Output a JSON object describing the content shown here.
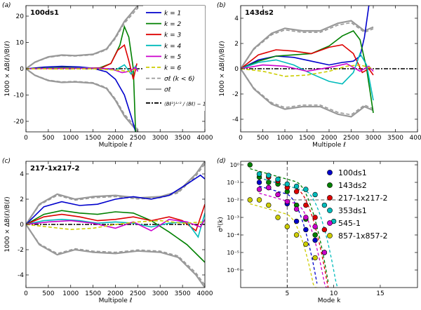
{
  "chart_data": [
    {
      "panel": "(a)",
      "type": "line",
      "title": "100ds1",
      "xlabel": "Multipole ℓ",
      "ylabel": "1000 × ΔB(ℓ)/B(ℓ)",
      "xlim": [
        0,
        4000
      ],
      "ylim": [
        -24,
        24
      ],
      "xticks": [
        "0",
        "500",
        "1000",
        "1500",
        "2000",
        "2500",
        "3000",
        "3500",
        "4000"
      ],
      "yticks": [
        "20",
        "10",
        "0",
        "-10",
        "-20"
      ],
      "ytick_values": [
        20,
        10,
        0,
        -10,
        -20
      ],
      "series": [
        {
          "name": "k=1",
          "color": "#0000cc",
          "x": [
            0,
            400,
            800,
            1200,
            1500,
            1800,
            2000,
            2200,
            2350,
            2450
          ],
          "y": [
            0,
            0.6,
            0.9,
            0.7,
            0.2,
            -1.2,
            -4,
            -10,
            -18,
            -24
          ]
        },
        {
          "name": "k=2",
          "color": "#008000",
          "x": [
            0,
            500,
            900,
            1300,
            1600,
            1900,
            2100,
            2200,
            2300,
            2400,
            2450
          ],
          "y": [
            0,
            0.3,
            0.5,
            0.2,
            0,
            2,
            9,
            16,
            12,
            0,
            -24
          ]
        },
        {
          "name": "k=3",
          "color": "#dd0000",
          "x": [
            0,
            500,
            900,
            1300,
            1700,
            1900,
            2050,
            2200,
            2300,
            2400,
            2480
          ],
          "y": [
            0,
            0.2,
            0.3,
            0.2,
            0.4,
            2,
            7,
            9,
            3,
            -4,
            2
          ]
        },
        {
          "name": "k=4",
          "color": "#00bbbb",
          "x": [
            0,
            600,
            1200,
            1700,
            2000,
            2200,
            2350,
            2450,
            2500
          ],
          "y": [
            0,
            0.2,
            0.3,
            0.2,
            -0.5,
            1.5,
            -2,
            1,
            -1
          ]
        },
        {
          "name": "k=5",
          "color": "#cc00cc",
          "x": [
            0,
            800,
            1500,
            1900,
            2150,
            2300,
            2450,
            2500
          ],
          "y": [
            0,
            0.1,
            0.2,
            0,
            -1.5,
            -1,
            0.5,
            -1
          ]
        },
        {
          "name": "k=6",
          "color": "#cccc00",
          "dashed": true,
          "x": [
            0,
            800,
            1500,
            2000,
            2300,
            2450
          ],
          "y": [
            0,
            -0.1,
            0,
            -0.5,
            -1,
            -0.2
          ]
        }
      ],
      "sigma_upper": {
        "x": [
          0,
          200,
          500,
          800,
          1100,
          1500,
          1800,
          2000,
          2200,
          2400,
          2500
        ],
        "y": [
          0,
          2.5,
          4.5,
          5.2,
          5,
          5.5,
          7.5,
          12,
          18,
          22,
          24
        ]
      },
      "sigma_lower": {
        "x": [
          0,
          200,
          500,
          800,
          1100,
          1500,
          1800,
          2000,
          2200,
          2400,
          2500
        ],
        "y": [
          0,
          -2.5,
          -4.5,
          -5.2,
          -5,
          -5.5,
          -7.5,
          -12,
          -18,
          -22,
          -24
        ]
      },
      "legend": [
        {
          "label": "k = 1",
          "color": "#0000cc",
          "style": "solid"
        },
        {
          "label": "k = 2",
          "color": "#008000",
          "style": "solid"
        },
        {
          "label": "k = 3",
          "color": "#dd0000",
          "style": "solid"
        },
        {
          "label": "k = 4",
          "color": "#00bbbb",
          "style": "solid"
        },
        {
          "label": "k = 5",
          "color": "#cc00cc",
          "style": "solid"
        },
        {
          "label": "k = 6",
          "color": "#cccc00",
          "style": "dashed"
        },
        {
          "label": "σℓ (k < 6)",
          "color": "#999999",
          "style": "dashed"
        },
        {
          "label": "σℓ",
          "color": "#999999",
          "style": "solid"
        },
        {
          "label": "⟨Bℓ²⟩¹ᐟ² / ⟨Bℓ⟩ − 1",
          "color": "#000000",
          "style": "dashdot"
        }
      ]
    },
    {
      "panel": "(b)",
      "type": "line",
      "title": "143ds2",
      "xlabel": "Multipole ℓ",
      "ylabel": "1000 × ΔB(ℓ)/B(ℓ)",
      "xlim": [
        0,
        4000
      ],
      "ylim": [
        -5,
        5
      ],
      "xticks": [
        "0",
        "500",
        "1000",
        "1500",
        "2000",
        "2500",
        "3000",
        "3500",
        "4000"
      ],
      "yticks": [
        "4",
        "2",
        "0",
        "-2",
        "-4"
      ],
      "ytick_values": [
        4,
        2,
        0,
        -2,
        -4
      ],
      "series": [
        {
          "name": "k=1",
          "color": "#0000cc",
          "x": [
            0,
            400,
            800,
            1200,
            1600,
            2000,
            2300,
            2550,
            2700,
            2800,
            2900
          ],
          "y": [
            0,
            0.7,
            1.0,
            0.9,
            0.6,
            0.3,
            0.5,
            0.6,
            1.0,
            2.5,
            5
          ]
        },
        {
          "name": "k=2",
          "color": "#008000",
          "x": [
            0,
            400,
            800,
            1200,
            1600,
            2000,
            2300,
            2550,
            2700,
            2850,
            3000
          ],
          "y": [
            0,
            0.6,
            1.0,
            1.1,
            1.2,
            1.8,
            2.6,
            3.0,
            2.3,
            0,
            -3.5
          ]
        },
        {
          "name": "k=3",
          "color": "#dd0000",
          "x": [
            0,
            400,
            800,
            1200,
            1600,
            2000,
            2300,
            2550,
            2750,
            2900,
            3000
          ],
          "y": [
            0,
            1.1,
            1.5,
            1.4,
            1.2,
            1.7,
            1.9,
            1.2,
            -0.3,
            0,
            -0.5
          ]
        },
        {
          "name": "k=4",
          "color": "#00bbbb",
          "x": [
            0,
            400,
            800,
            1200,
            1600,
            2000,
            2300,
            2550,
            2700,
            2850,
            3000
          ],
          "y": [
            0,
            0.5,
            0.7,
            0.3,
            -0.4,
            -1.0,
            -1.2,
            -0.3,
            1.2,
            0.3,
            -2.5
          ]
        },
        {
          "name": "k=5",
          "color": "#cc00cc",
          "x": [
            0,
            500,
            1000,
            1500,
            2000,
            2400,
            2700,
            2900,
            3000
          ],
          "y": [
            0,
            0.3,
            0.2,
            -0.2,
            0.1,
            0.4,
            -0.2,
            0.2,
            -0.2
          ]
        },
        {
          "name": "k=6",
          "color": "#cccc00",
          "dashed": true,
          "x": [
            0,
            500,
            1000,
            1500,
            2000,
            2400,
            2700,
            3000
          ],
          "y": [
            0,
            -0.2,
            -0.6,
            -0.5,
            -0.2,
            0.2,
            0.3,
            0
          ]
        }
      ],
      "sigma_upper": {
        "x": [
          0,
          300,
          700,
          1000,
          1400,
          1800,
          2200,
          2500,
          2800,
          3000
        ],
        "y": [
          0,
          1.6,
          2.8,
          3.2,
          3.0,
          3.0,
          3.6,
          3.8,
          3.0,
          3.3
        ]
      },
      "sigma_lower": {
        "x": [
          0,
          300,
          700,
          1000,
          1400,
          1800,
          2200,
          2500,
          2800,
          3000
        ],
        "y": [
          0,
          -1.6,
          -2.8,
          -3.2,
          -3.0,
          -3.0,
          -3.6,
          -3.8,
          -3.0,
          -3.3
        ]
      }
    },
    {
      "panel": "(c)",
      "type": "line",
      "title": "217-1x217-2",
      "xlabel": "Multipole ℓ",
      "ylabel": "1000 × ΔB(ℓ)/B(ℓ)",
      "xlim": [
        0,
        4000
      ],
      "ylim": [
        -5,
        5
      ],
      "xticks": [
        "0",
        "500",
        "1000",
        "1500",
        "2000",
        "2500",
        "3000",
        "3500",
        "4000"
      ],
      "yticks": [
        "4",
        "2",
        "0",
        "-2",
        "-4"
      ],
      "ytick_values": [
        4,
        2,
        0,
        -2,
        -4
      ],
      "series": [
        {
          "name": "k=1",
          "color": "#0000cc",
          "x": [
            0,
            400,
            800,
            1200,
            1600,
            2000,
            2400,
            2800,
            3200,
            3600,
            3900,
            4000
          ],
          "y": [
            0,
            1.4,
            1.8,
            1.5,
            1.6,
            2.0,
            2.2,
            2.0,
            2.3,
            3.2,
            3.9,
            3.6
          ]
        },
        {
          "name": "k=2",
          "color": "#008000",
          "x": [
            0,
            400,
            800,
            1200,
            1600,
            2000,
            2400,
            2800,
            3200,
            3600,
            4000
          ],
          "y": [
            0,
            0.8,
            1.1,
            0.9,
            0.8,
            1.0,
            0.9,
            0.3,
            -0.6,
            -1.6,
            -3.0
          ]
        },
        {
          "name": "k=3",
          "color": "#dd0000",
          "x": [
            0,
            400,
            800,
            1200,
            1600,
            2000,
            2400,
            2800,
            3200,
            3500,
            3800,
            4000
          ],
          "y": [
            0,
            0.6,
            0.8,
            0.6,
            0.3,
            0.4,
            0.6,
            0.3,
            0.6,
            0.3,
            -0.5,
            1.6
          ]
        },
        {
          "name": "k=4",
          "color": "#00bbbb",
          "x": [
            0,
            400,
            800,
            1200,
            1600,
            2000,
            2400,
            2800,
            3200,
            3600,
            3850,
            4000
          ],
          "y": [
            0,
            0.3,
            0.4,
            0.3,
            0.1,
            0.2,
            0.1,
            -0.2,
            0.1,
            0.2,
            -1.0,
            0.9
          ]
        },
        {
          "name": "k=5",
          "color": "#cc00cc",
          "x": [
            0,
            500,
            1000,
            1500,
            2000,
            2400,
            2800,
            3200,
            3600,
            3900,
            4000
          ],
          "y": [
            0,
            0.2,
            0.3,
            0.1,
            -0.3,
            0.2,
            -0.5,
            0.4,
            0.2,
            -0.2,
            0.4
          ]
        },
        {
          "name": "k=6",
          "color": "#cccc00",
          "dashed": true,
          "x": [
            0,
            500,
            1000,
            1500,
            2000,
            2500,
            3000,
            3500,
            4000
          ],
          "y": [
            0,
            -0.2,
            -0.4,
            -0.3,
            0,
            0.2,
            0.3,
            0.1,
            0.2
          ]
        }
      ],
      "sigma_upper": {
        "x": [
          0,
          300,
          700,
          1100,
          1500,
          2000,
          2500,
          3000,
          3400,
          3800,
          4000
        ],
        "y": [
          0,
          1.6,
          2.4,
          2.0,
          2.2,
          2.3,
          2.1,
          2.2,
          2.6,
          4.0,
          5.0
        ]
      },
      "sigma_lower": {
        "x": [
          0,
          300,
          700,
          1100,
          1500,
          2000,
          2500,
          3000,
          3400,
          3800,
          4000
        ],
        "y": [
          0,
          -1.6,
          -2.4,
          -2.0,
          -2.2,
          -2.3,
          -2.1,
          -2.2,
          -2.6,
          -4.0,
          -5.0
        ]
      }
    },
    {
      "panel": "(d)",
      "type": "scatter",
      "title": "",
      "xlabel": "Mode k",
      "ylabel": "σ²(k)",
      "xlim": [
        0,
        19
      ],
      "ylim_log10": [
        -7,
        0.2
      ],
      "xticks": [
        "5",
        "10",
        "15"
      ],
      "xtick_values": [
        5,
        10,
        15
      ],
      "yticks": [
        "10⁰",
        "10⁻¹",
        "10⁻²",
        "10⁻³",
        "10⁻⁴",
        "10⁻⁵",
        "10⁻⁶"
      ],
      "ytick_exponents": [
        0,
        -1,
        -2,
        -3,
        -4,
        -5,
        -6
      ],
      "reference_lines": {
        "vertical_k": 5,
        "horizontal_value": 0.01
      },
      "series": [
        {
          "name": "100ds1",
          "color": "#0000cc",
          "k": [
            2,
            3,
            4,
            5,
            6,
            7,
            8
          ],
          "value": [
            0.1,
            0.05,
            0.02,
            0.006,
            0.0006,
            0.0002,
            5e-05
          ]
        },
        {
          "name": "143ds2",
          "color": "#008000",
          "k": [
            1,
            2,
            3,
            4,
            5,
            6,
            7,
            8,
            9
          ],
          "value": [
            1.0,
            0.2,
            0.1,
            0.08,
            0.03,
            0.005,
            0.0008,
            0.0001,
            1e-05
          ]
        },
        {
          "name": "217-1x217-2",
          "color": "#dd0000",
          "k": [
            2,
            3,
            4,
            5,
            6,
            7,
            8,
            9
          ],
          "value": [
            0.3,
            0.2,
            0.12,
            0.05,
            0.03,
            0.005,
            0.001,
            0.0002
          ]
        },
        {
          "name": "353ds1",
          "color": "#00bbbb",
          "k": [
            2,
            3,
            4,
            5,
            6,
            7,
            8,
            9,
            10
          ],
          "value": [
            0.3,
            0.25,
            0.15,
            0.08,
            0.06,
            0.04,
            0.02,
            0.005,
            0.0006
          ]
        },
        {
          "name": "545-1",
          "color": "#cc00cc",
          "k": [
            2,
            3,
            4,
            5,
            6,
            7,
            8,
            9
          ],
          "value": [
            0.04,
            0.05,
            0.02,
            0.008,
            0.003,
            0.001,
            0.0003,
            1e-05
          ]
        },
        {
          "name": "857-1x857-2",
          "color": "#cccc00",
          "k": [
            1,
            2,
            3,
            4,
            5,
            6,
            7,
            8
          ],
          "value": [
            0.01,
            0.01,
            0.005,
            0.001,
            0.0003,
            0.0001,
            3e-05,
            5e-06
          ]
        }
      ]
    }
  ]
}
